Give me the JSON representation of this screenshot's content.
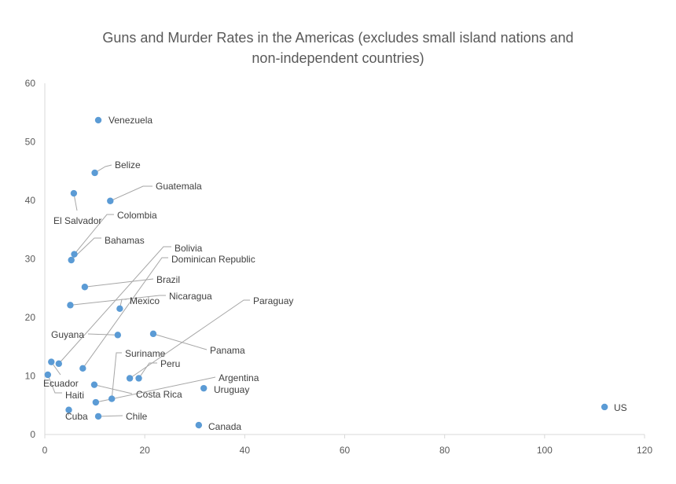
{
  "chart_data": {
    "type": "scatter",
    "title_line1": "Guns and Murder Rates in the Americas (excludes small island nations and",
    "title_line2": "non-independent countries)",
    "xlim": [
      0,
      120
    ],
    "ylim": [
      0,
      60
    ],
    "x_ticks": [
      0,
      20,
      40,
      60,
      80,
      100,
      120
    ],
    "y_ticks": [
      0,
      10,
      20,
      30,
      40,
      50,
      60
    ],
    "grid": false,
    "point_color": "#5B9BD5",
    "leader_color": "#A6A6A6",
    "points": [
      {
        "name": "Venezuela",
        "x": 10.7,
        "y": 53.7
      },
      {
        "name": "Belize",
        "x": 10.0,
        "y": 44.7
      },
      {
        "name": "Guatemala",
        "x": 13.1,
        "y": 39.9
      },
      {
        "name": "El Salvador",
        "x": 5.8,
        "y": 41.2
      },
      {
        "name": "Colombia",
        "x": 5.9,
        "y": 30.8
      },
      {
        "name": "Bahamas",
        "x": 5.3,
        "y": 29.8
      },
      {
        "name": "Bolivia",
        "x": 2.8,
        "y": 12.1
      },
      {
        "name": "Dominican Republic",
        "x": 7.6,
        "y": 11.3
      },
      {
        "name": "Brazil",
        "x": 8.0,
        "y": 25.2
      },
      {
        "name": "Mexico",
        "x": 15.0,
        "y": 21.5
      },
      {
        "name": "Nicaragua",
        "x": 5.1,
        "y": 22.1
      },
      {
        "name": "Paraguay",
        "x": 17.0,
        "y": 9.6
      },
      {
        "name": "Guyana",
        "x": 14.6,
        "y": 17.0
      },
      {
        "name": "Panama",
        "x": 21.7,
        "y": 17.2
      },
      {
        "name": "Suriname",
        "x": 13.4,
        "y": 6.1
      },
      {
        "name": "Peru",
        "x": 18.8,
        "y": 9.6
      },
      {
        "name": "Ecuador",
        "x": 1.3,
        "y": 12.4
      },
      {
        "name": "Argentina",
        "x": 10.2,
        "y": 5.5
      },
      {
        "name": "Haiti",
        "x": 0.6,
        "y": 10.2
      },
      {
        "name": "Costa Rica",
        "x": 9.9,
        "y": 8.5
      },
      {
        "name": "Uruguay",
        "x": 31.8,
        "y": 7.9
      },
      {
        "name": "Cuba",
        "x": 4.8,
        "y": 4.2
      },
      {
        "name": "Chile",
        "x": 10.7,
        "y": 3.1
      },
      {
        "name": "Canada",
        "x": 30.8,
        "y": 1.6
      },
      {
        "name": "US",
        "x": 112.0,
        "y": 4.7
      }
    ]
  }
}
